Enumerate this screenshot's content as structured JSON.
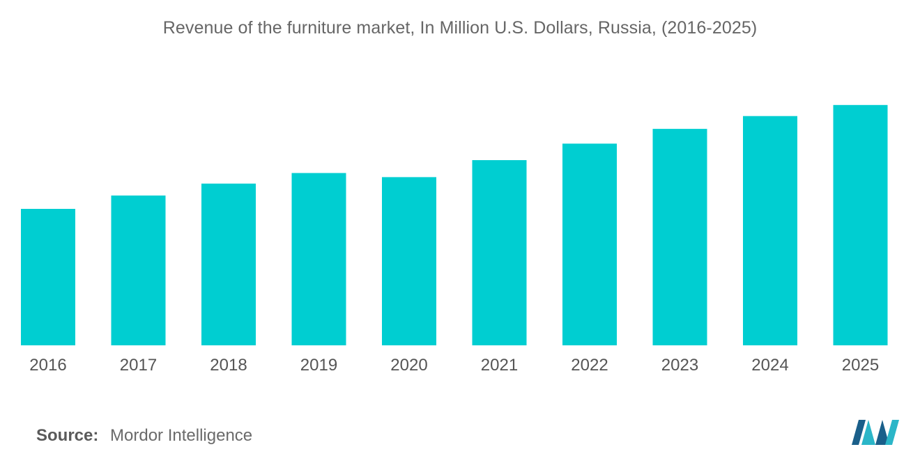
{
  "chart_data": {
    "type": "bar",
    "title": "Revenue of the furniture market, In Million U.S. Dollars, Russia, (2016-2025)",
    "categories": [
      "2016",
      "2017",
      "2018",
      "2019",
      "2020",
      "2021",
      "2022",
      "2023",
      "2024",
      "2025"
    ],
    "values": [
      5940,
      6520,
      7040,
      7500,
      7320,
      8060,
      8780,
      9420,
      9980,
      10460
    ],
    "xlabel": "",
    "ylabel": "",
    "ylim": [
      0,
      12000
    ],
    "grid": false,
    "legend": "none",
    "bar_color": "#00ced1"
  },
  "source": {
    "label": "Source:",
    "value": "Mordor Intelligence"
  },
  "logo": {
    "icon": "mordor-intelligence-logo-icon",
    "colors": [
      "#1a5f8a",
      "#2bb6c8"
    ]
  }
}
